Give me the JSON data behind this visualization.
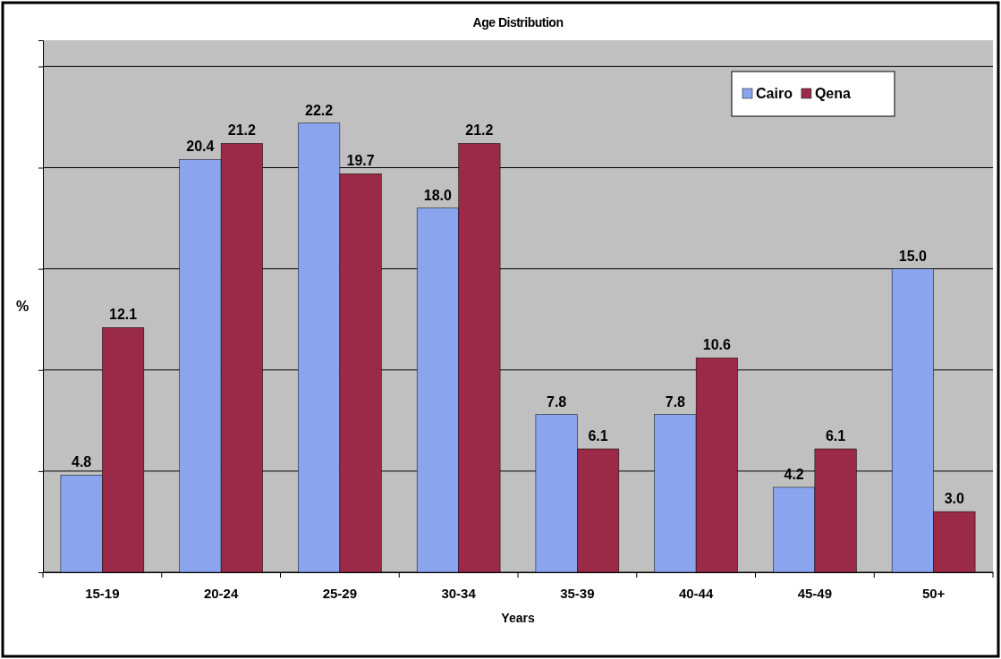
{
  "chart_data": {
    "type": "bar",
    "title": "Age Distribution",
    "xlabel": "Years",
    "ylabel": "%",
    "categories": [
      "15-19",
      "20-24",
      "25-29",
      "30-34",
      "35-39",
      "40-44",
      "45-49",
      "50+"
    ],
    "series": [
      {
        "name": "Cairo",
        "color": "#8aa4ee",
        "values": [
          4.8,
          20.4,
          22.2,
          18.0,
          7.8,
          7.8,
          4.2,
          15.0
        ],
        "value_labels": [
          "4.8",
          "20.4",
          "22.2",
          "18.0",
          "7.8",
          "7.8",
          "4.2",
          "15.0"
        ]
      },
      {
        "name": "Qena",
        "color": "#9a2a48",
        "values": [
          12.1,
          21.2,
          19.7,
          21.2,
          6.1,
          10.6,
          6.1,
          3.0
        ],
        "value_labels": [
          "12.1",
          "21.2",
          "19.7",
          "21.2",
          "6.1",
          "10.6",
          "6.1",
          "3.0"
        ]
      }
    ],
    "ylim": [
      0,
      26.3
    ],
    "yticks": [
      {
        "value": 0,
        "label": null
      },
      {
        "value": 5,
        "label": null
      },
      {
        "value": 10,
        "label": null
      },
      {
        "value": 15,
        "label": null
      },
      {
        "value": 20,
        "label": null
      },
      {
        "value": 25,
        "label": null
      }
    ],
    "tick_labels": "x",
    "grid": "y",
    "legend": "top right"
  }
}
